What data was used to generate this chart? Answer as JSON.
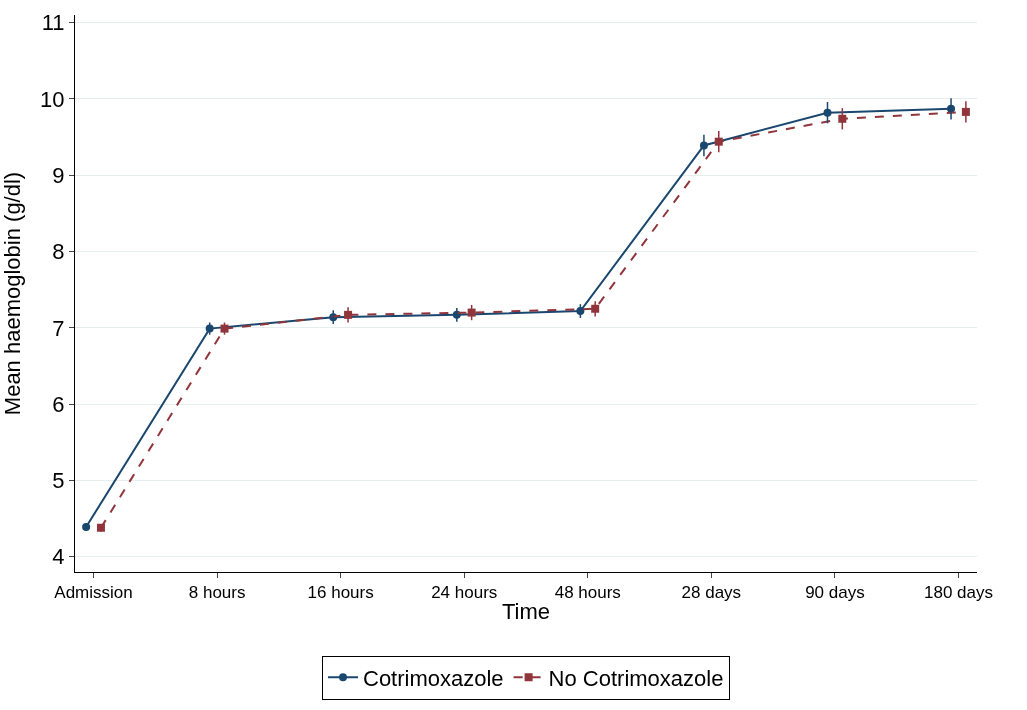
{
  "chart_data": {
    "type": "line",
    "xlabel": "Time",
    "ylabel": "Mean haemoglobin (g/dl)",
    "categories": [
      "Admission",
      "8 hours",
      "16 hours",
      "24 hours",
      "48 hours",
      "28 days",
      "90 days",
      "180 days"
    ],
    "series": [
      {
        "name": "Cotrimoxazole",
        "color": "#1a476f",
        "marker": "circle",
        "line_style": "solid",
        "values": [
          4.39,
          6.99,
          7.14,
          7.17,
          7.22,
          9.39,
          9.82,
          9.87
        ],
        "errors": [
          0.05,
          0.08,
          0.09,
          0.09,
          0.09,
          0.14,
          0.14,
          0.14
        ]
      },
      {
        "name": "No Cotrimoxazole",
        "color": "#90353b",
        "marker": "square",
        "line_style": "dashed",
        "values": [
          4.38,
          6.99,
          7.17,
          7.2,
          7.25,
          9.44,
          9.74,
          9.83
        ],
        "errors": [
          0.05,
          0.08,
          0.1,
          0.1,
          0.1,
          0.14,
          0.14,
          0.14
        ]
      }
    ],
    "ylim": [
      3.8,
      11.1
    ],
    "yticks": [
      4,
      5,
      6,
      7,
      8,
      9,
      10,
      11
    ],
    "grid": "y",
    "legend": "bottom"
  }
}
